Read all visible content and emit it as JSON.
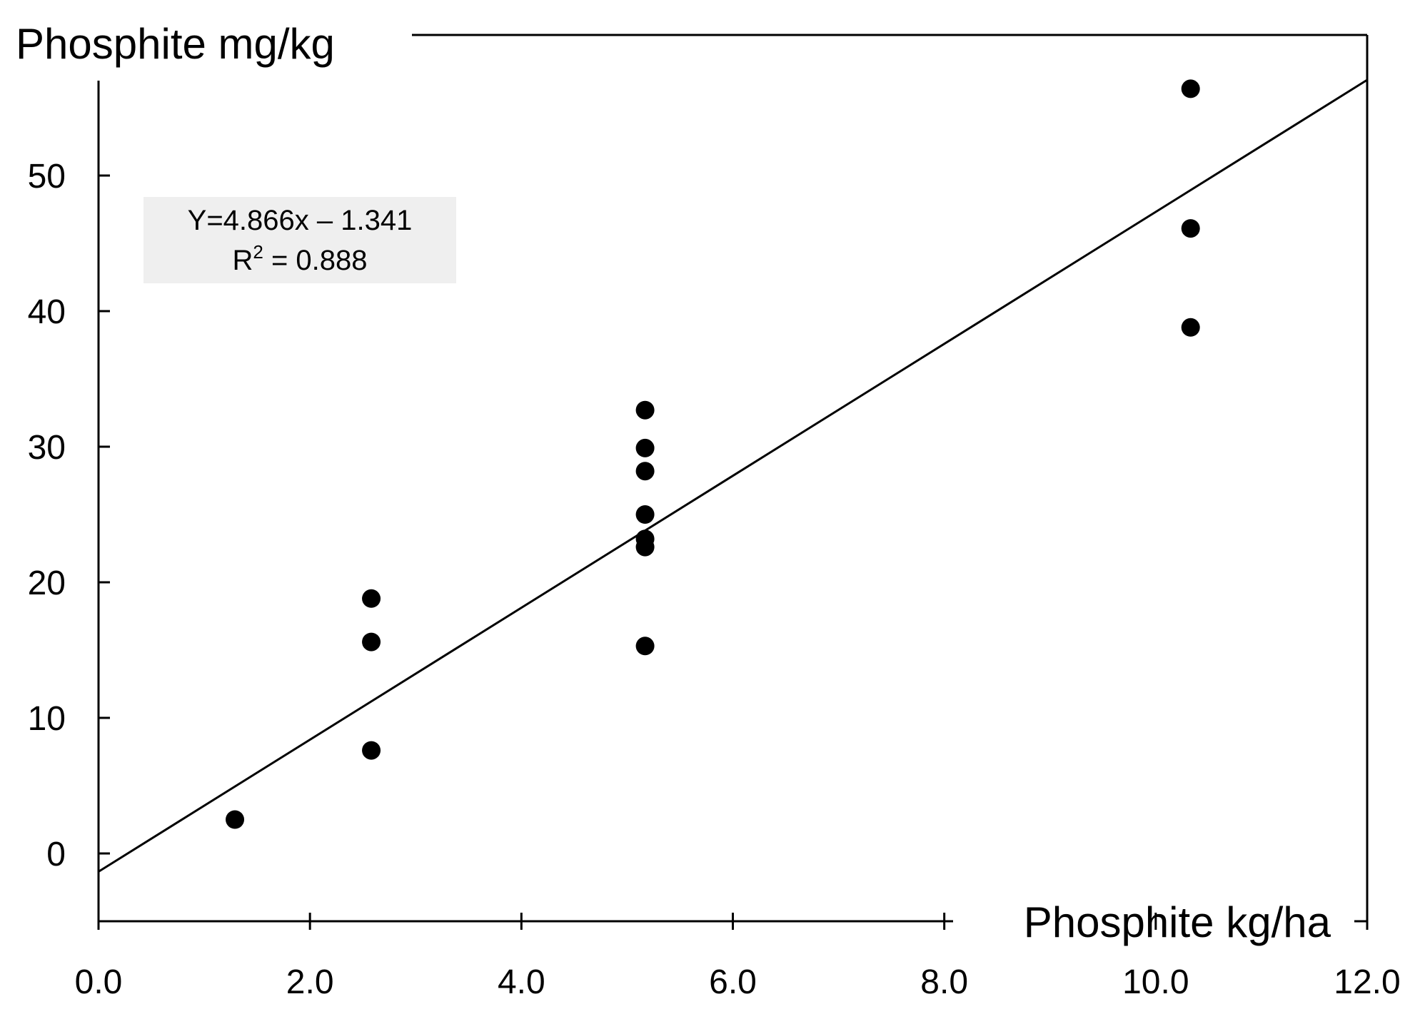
{
  "chart_data": {
    "type": "scatter",
    "title": "",
    "xlabel": "Phosphite kg/ha",
    "ylabel": "Phosphite mg/kg",
    "xlim": [
      0,
      12
    ],
    "ylim": [
      -5,
      57
    ],
    "xticks": [
      0,
      2,
      4,
      6,
      8,
      10,
      12
    ],
    "xtick_labels": [
      "0.0",
      "2.0",
      "4.0",
      "6.0",
      "8.0",
      "10.0",
      "12.0"
    ],
    "yticks": [
      0,
      10,
      20,
      30,
      40,
      50
    ],
    "ytick_labels": [
      "0",
      "10",
      "20",
      "30",
      "40",
      "50"
    ],
    "grid": false,
    "series": [
      {
        "name": "Phosphite",
        "x": [
          1.29,
          2.58,
          2.58,
          2.58,
          5.17,
          5.17,
          5.17,
          5.17,
          5.17,
          5.17,
          5.17,
          10.33,
          10.33,
          10.33
        ],
        "y": [
          2.5,
          18.8,
          15.6,
          7.6,
          32.7,
          29.9,
          28.2,
          25.0,
          23.2,
          22.6,
          15.3,
          56.4,
          46.1,
          38.8
        ]
      }
    ],
    "regression": {
      "slope": 4.866,
      "intercept": -1.341
    },
    "annotation": {
      "equation": "Y=4.866x – 1.341",
      "r2_prefix": "R",
      "r2_sup": "2",
      "r2_suffix": " = 0.888"
    }
  }
}
